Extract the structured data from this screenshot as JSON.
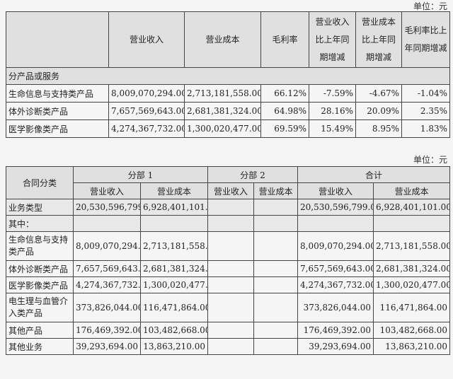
{
  "unit_label": "单位：元",
  "table1": {
    "headers": [
      "",
      "营业收入",
      "营业成本",
      "毛利率",
      "营业收入比上年同期增减",
      "营业成本比上年同期增减",
      "毛利率比上年同期增减"
    ],
    "section": "分产品或服务",
    "rows": [
      [
        "生命信息与支持类产品",
        "8,009,070,294.00",
        "2,713,181,558.00",
        "66.12%",
        "-7.59%",
        "-4.67%",
        "-1.04%"
      ],
      [
        "体外诊断类产品",
        "7,657,569,643.00",
        "2,681,381,324.00",
        "64.98%",
        "28.16%",
        "20.09%",
        "2.35%"
      ],
      [
        "医学影像类产品",
        "4,274,367,732.00",
        "1,300,020,477.00",
        "69.59%",
        "15.49%",
        "8.95%",
        "1.83%"
      ]
    ]
  },
  "table2": {
    "contract_type": "合同分类",
    "segment1": "分部 1",
    "segment2": "分部 2",
    "total": "合计",
    "revenue": "营业收入",
    "cost": "营业成本",
    "rows": [
      [
        "业务类型",
        "20,530,596,799.00",
        "6,928,401,101.00",
        "",
        "",
        "20,530,596,799.00",
        "6,928,401,101.00"
      ],
      [
        "其中：",
        "",
        "",
        "",
        "",
        "",
        ""
      ],
      [
        "生命信息与支持类产品",
        "8,009,070,294.00",
        "2,713,181,558.00",
        "",
        "",
        "8,009,070,294.00",
        "2,713,181,558.00"
      ],
      [
        "体外诊断类产品",
        "7,657,569,643.00",
        "2,681,381,324.00",
        "",
        "",
        "7,657,569,643.00",
        "2,681,381,324.00"
      ],
      [
        "医学影像类产品",
        "4,274,367,732.00",
        "1,300,020,477.00",
        "",
        "",
        "4,274,367,732.00",
        "1,300,020,477.00"
      ],
      [
        "电生理与血管介入类产品",
        "373,826,044.00",
        "116,471,864.00",
        "",
        "",
        "373,826,044.00",
        "116,471,864.00"
      ],
      [
        "其他产品",
        "176,469,392.00",
        "103,482,668.00",
        "",
        "",
        "176,469,392.00",
        "103,482,668.00"
      ],
      [
        "其他业务",
        "39,293,694.00",
        "13,863,210.00",
        "",
        "",
        "39,293,694.00",
        "13,863,210.00"
      ]
    ]
  }
}
